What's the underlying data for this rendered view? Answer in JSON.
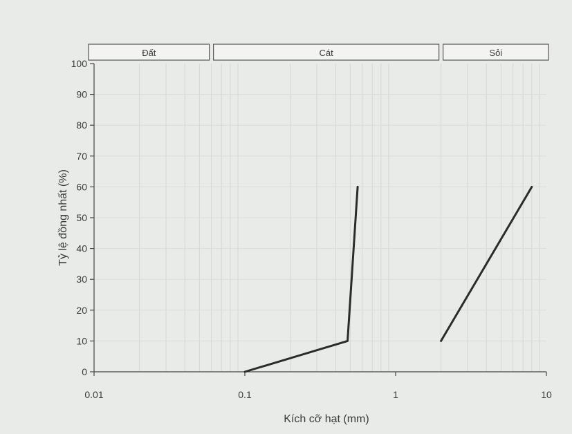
{
  "chart_data": {
    "type": "line",
    "xscale": "log",
    "xlim": [
      0.01,
      10
    ],
    "ylim": [
      0,
      100
    ],
    "xlabel": "Kích cỡ hạt (mm)",
    "ylabel": "Tỷ lệ đồng nhất (%)",
    "xticks": [
      "0.01",
      "0.1",
      "1",
      "10"
    ],
    "yticks": [
      "0",
      "10",
      "20",
      "30",
      "40",
      "50",
      "60",
      "70",
      "80",
      "90",
      "100"
    ],
    "grid": false,
    "bands": [
      {
        "label": "Đất",
        "from": 0.01,
        "to": 0.06
      },
      {
        "label": "Cát",
        "from": 0.06,
        "to": 2
      },
      {
        "label": "Sỏi",
        "from": 2,
        "to": 10
      }
    ],
    "series": [
      {
        "points": [
          [
            0.1,
            0
          ],
          [
            0.48,
            10
          ],
          [
            0.56,
            60
          ]
        ],
        "color": "#2b2b2b"
      },
      {
        "points": [
          [
            2,
            10
          ],
          [
            8,
            60
          ]
        ],
        "color": "#2b2b2b"
      }
    ]
  }
}
